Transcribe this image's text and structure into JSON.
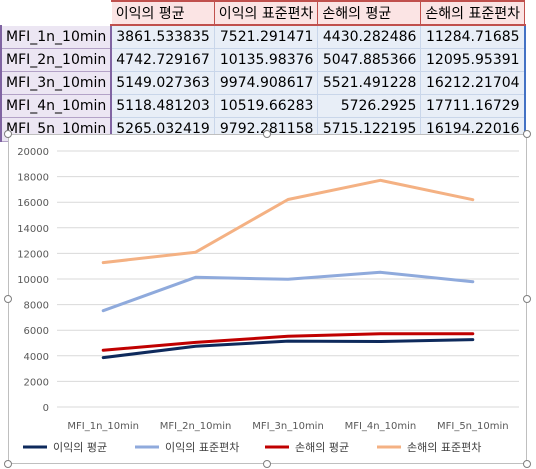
{
  "table": {
    "headers": [
      "이익의 평균",
      "이익의 표준편차",
      "손해의 평균",
      "손해의 표준편차"
    ],
    "rows": [
      {
        "label": "MFI_1n_10min",
        "values": [
          "3861.533835",
          "7521.291471",
          "4430.282486",
          "11284.71685"
        ]
      },
      {
        "label": "MFI_2n_10min",
        "values": [
          "4742.729167",
          "10135.98376",
          "5047.885366",
          "12095.95391"
        ]
      },
      {
        "label": "MFI_3n_10min",
        "values": [
          "5149.027363",
          "9974.908617",
          "5521.491228",
          "16212.21704"
        ]
      },
      {
        "label": "MFI_4n_10min",
        "values": [
          "5118.481203",
          "10519.66283",
          "5726.2925",
          "17711.16729"
        ]
      },
      {
        "label": "MFI_5n_10min",
        "values": [
          "5265.032419",
          "9792.281158",
          "5715.122195",
          "16194.22016"
        ]
      }
    ]
  },
  "chart_data": {
    "type": "line",
    "title": "",
    "xlabel": "",
    "ylabel": "",
    "categories": [
      "MFI_1n_10min",
      "MFI_2n_10min",
      "MFI_3n_10min",
      "MFI_4n_10min",
      "MFI_5n_10min"
    ],
    "ylim": [
      0,
      20000
    ],
    "yticks": [
      0,
      2000,
      4000,
      6000,
      8000,
      10000,
      12000,
      14000,
      16000,
      18000,
      20000
    ],
    "grid": true,
    "legend_position": "bottom",
    "series": [
      {
        "name": "이익의 평균",
        "color": "#0e2a5c",
        "values": [
          3861.533835,
          4742.729167,
          5149.027363,
          5118.481203,
          5265.032419
        ]
      },
      {
        "name": "이익의 표준편차",
        "color": "#8faadc",
        "values": [
          7521.291471,
          10135.98376,
          9974.908617,
          10519.66283,
          9792.281158
        ]
      },
      {
        "name": "손해의 평균",
        "color": "#c00000",
        "values": [
          4430.282486,
          5047.885366,
          5521.491228,
          5726.2925,
          5715.122195
        ]
      },
      {
        "name": "손해의 표준편차",
        "color": "#f4b183",
        "values": [
          11284.71685,
          12095.95391,
          16212.21704,
          17711.16729,
          16194.22016
        ]
      }
    ]
  }
}
